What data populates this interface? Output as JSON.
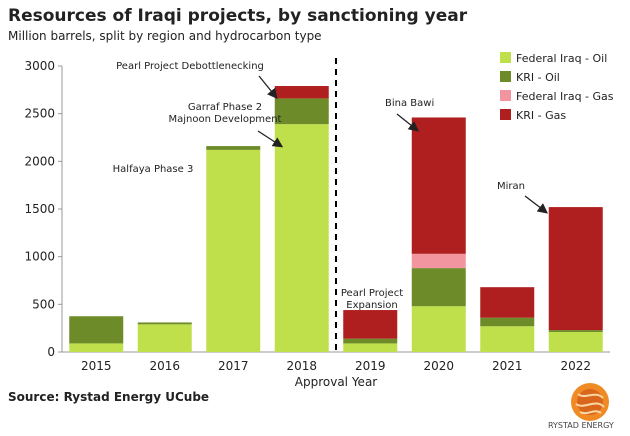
{
  "header": {
    "title": "Resources of Iraqi projects, by sanctioning year",
    "subtitle": "Million barrels, split by region and hydrocarbon type"
  },
  "source": "Source: Rystad Energy UCube",
  "logo": {
    "text": "RYSTAD ENERGY"
  },
  "chart_data": {
    "type": "bar",
    "stacked": true,
    "title": "Resources of Iraqi projects, by sanctioning year",
    "xlabel": "Approval Year",
    "ylabel": "",
    "ylim": [
      0,
      3000
    ],
    "yticks": [
      0,
      500,
      1000,
      1500,
      2000,
      2500,
      3000
    ],
    "grid": false,
    "legend_position": "top-right",
    "categories": [
      "2015",
      "2016",
      "2017",
      "2018",
      "2019",
      "2020",
      "2021",
      "2022"
    ],
    "series": [
      {
        "name": "Federal Iraq - Oil",
        "color": "#bfe04a",
        "values": [
          90,
          290,
          2120,
          2390,
          90,
          480,
          270,
          210
        ]
      },
      {
        "name": "KRI - Oil",
        "color": "#6e8b2a",
        "values": [
          285,
          20,
          40,
          270,
          50,
          400,
          90,
          20
        ]
      },
      {
        "name": "Federal Iraq - Gas",
        "color": "#f2959e",
        "values": [
          0,
          0,
          0,
          0,
          0,
          150,
          0,
          0
        ]
      },
      {
        "name": "KRI - Gas",
        "color": "#b01f1f",
        "values": [
          0,
          0,
          0,
          130,
          300,
          1430,
          320,
          1290
        ]
      }
    ],
    "divider_after": "2018",
    "annotations": [
      {
        "text": "Halfaya Phase 3",
        "target": "2017"
      },
      {
        "text": "Garraf Phase 2\nMajnoon Development",
        "target": "2018"
      },
      {
        "text": "Pearl Project Debottlenecking",
        "target": "2018"
      },
      {
        "text": "Pearl Project\nExpansion",
        "target": "2019"
      },
      {
        "text": "Bina Bawi",
        "target": "2020"
      },
      {
        "text": "Miran",
        "target": "2022"
      }
    ]
  }
}
